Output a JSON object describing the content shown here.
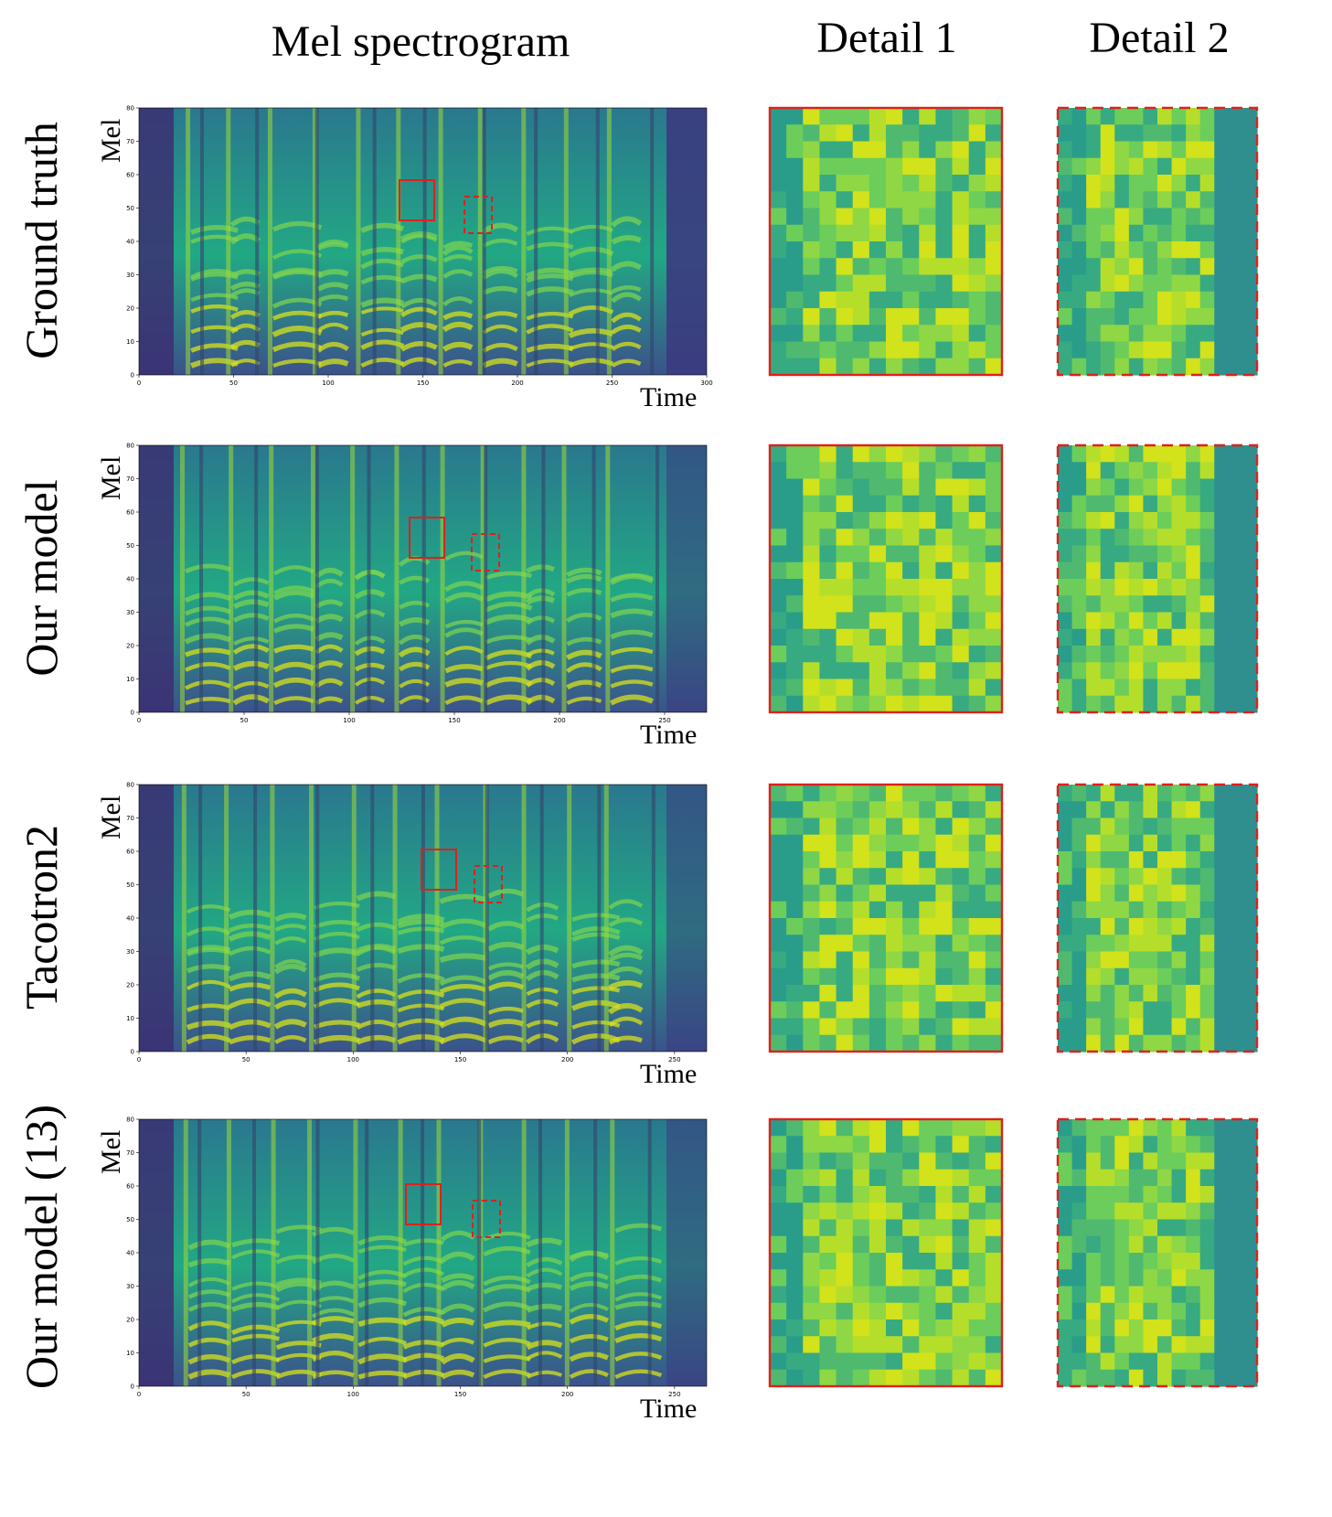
{
  "column_headers": [
    "Mel spectrogram",
    "Detail 1",
    "Detail 2"
  ],
  "axis": {
    "x_title": "Time",
    "y_title": "Mel"
  },
  "colors": {
    "box": "#e0201b",
    "bg_low": "#440154",
    "bg_mid": "#21918c",
    "bg_high": "#fde725"
  },
  "rows": [
    {
      "label": "Ground truth",
      "x_ticks": [
        "0",
        "50",
        "100",
        "150",
        "200",
        "250",
        "300"
      ],
      "y_ticks": [
        "0",
        "10",
        "20",
        "30",
        "40",
        "50",
        "60",
        "70",
        "80"
      ]
    },
    {
      "label": "Our model",
      "x_ticks": [
        "0",
        "50",
        "100",
        "150",
        "200",
        "250"
      ],
      "y_ticks": [
        "0",
        "10",
        "20",
        "30",
        "40",
        "50",
        "60",
        "70",
        "80"
      ]
    },
    {
      "label": "Tacotron2",
      "x_ticks": [
        "0",
        "50",
        "100",
        "150",
        "200",
        "250"
      ],
      "y_ticks": [
        "0",
        "10",
        "20",
        "30",
        "40",
        "50",
        "60",
        "70",
        "80"
      ]
    },
    {
      "label": "Our model (13)",
      "x_ticks": [
        "0",
        "50",
        "100",
        "150",
        "200",
        "250"
      ],
      "y_ticks": [
        "0",
        "10",
        "20",
        "30",
        "40",
        "50",
        "60",
        "70",
        "80"
      ]
    }
  ]
}
